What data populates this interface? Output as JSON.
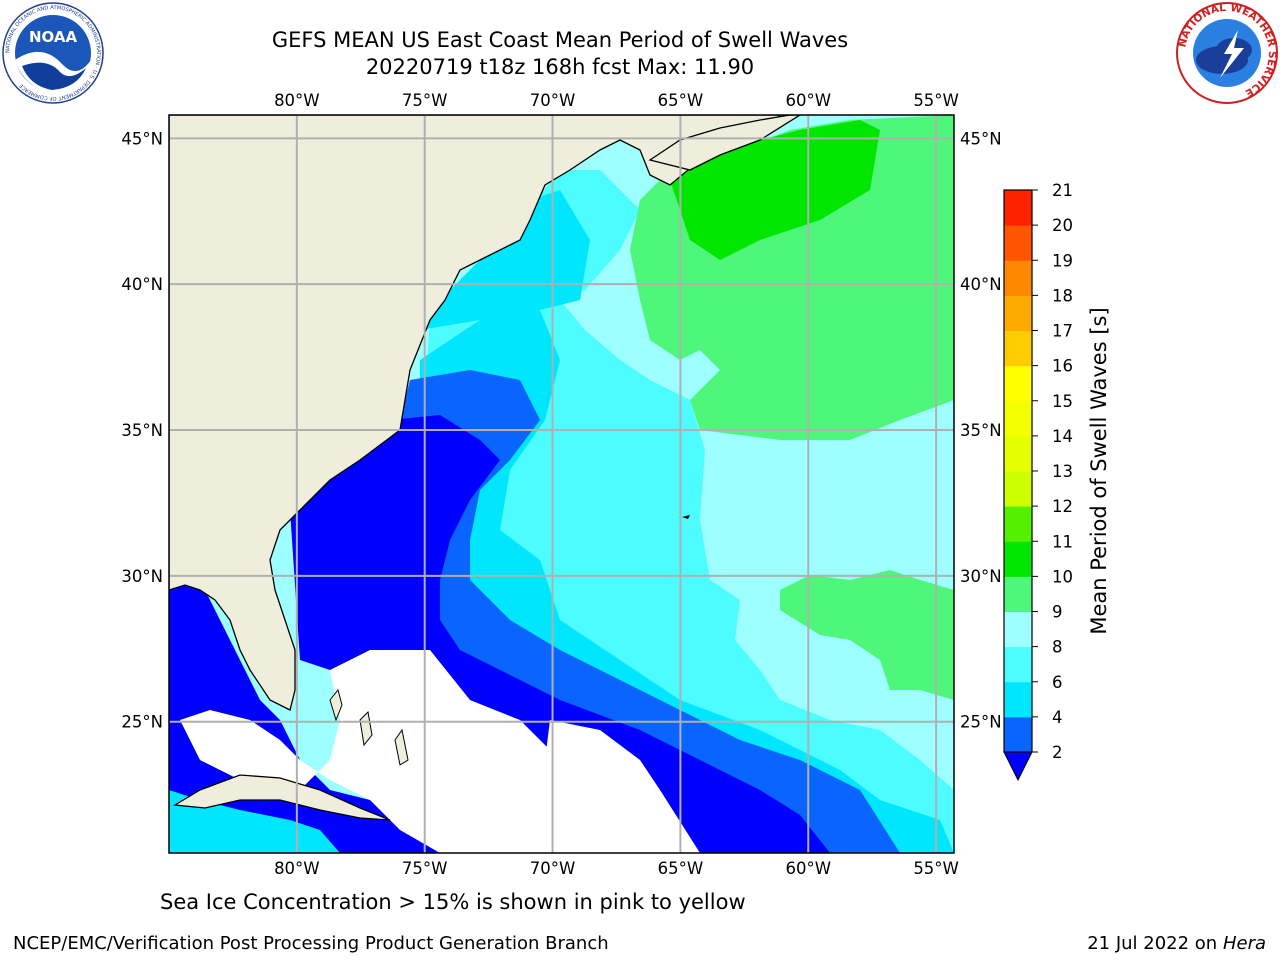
{
  "title": {
    "line1": "GEFS MEAN US East Coast Mean Period of Swell Waves",
    "line2": "20220719 t18z 168h fcst   Max: 11.90"
  },
  "logos": {
    "left": {
      "text": "NOAA",
      "ring_text": "NATIONAL OCEANIC AND ATMOSPHERIC ADMINISTRATION · U.S. DEPARTMENT OF COMMERCE"
    },
    "right": {
      "ring_text": "NATIONAL WEATHER SERVICE"
    }
  },
  "map": {
    "lon_labels": [
      "80°W",
      "75°W",
      "70°W",
      "65°W",
      "60°W",
      "55°W"
    ],
    "lon_values": [
      -80,
      -75,
      -70,
      -65,
      -60,
      -55
    ],
    "lat_labels": [
      "45°N",
      "40°N",
      "35°N",
      "30°N",
      "25°N"
    ],
    "lat_values": [
      45,
      40,
      35,
      30,
      25
    ],
    "extent": {
      "lon_min": -85,
      "lon_max": -54.3,
      "lat_min": 20.5,
      "lat_max": 45.8
    },
    "colors": {
      "land": "#efeedc",
      "coast": "#000000",
      "grid": "#b0b0b0"
    }
  },
  "colorbar": {
    "label": "Mean Period of Swell Waves [s]",
    "tick_labels": [
      "2",
      "4",
      "6",
      "8",
      "9",
      "10",
      "11",
      "12",
      "13",
      "14",
      "15",
      "16",
      "17",
      "18",
      "19",
      "20",
      "21"
    ],
    "colors": [
      "#0a64ff",
      "#00e6ff",
      "#4dfcff",
      "#9dffff",
      "#4ef77a",
      "#00e600",
      "#55f000",
      "#ccff00",
      "#e6ff00",
      "#f4ff00",
      "#ffff00",
      "#ffcc00",
      "#ffaa00",
      "#ff8800",
      "#ff5500",
      "#ff2200"
    ],
    "extend_below_color": "#0000ff"
  },
  "footer": {
    "sea_ice_note": "Sea Ice Concentration > 15% is shown in pink to yellow",
    "credit": "NCEP/EMC/Verification Post Processing Product Generation Branch",
    "date_text": "21 Jul 2022 on ",
    "machine": "Hera"
  }
}
